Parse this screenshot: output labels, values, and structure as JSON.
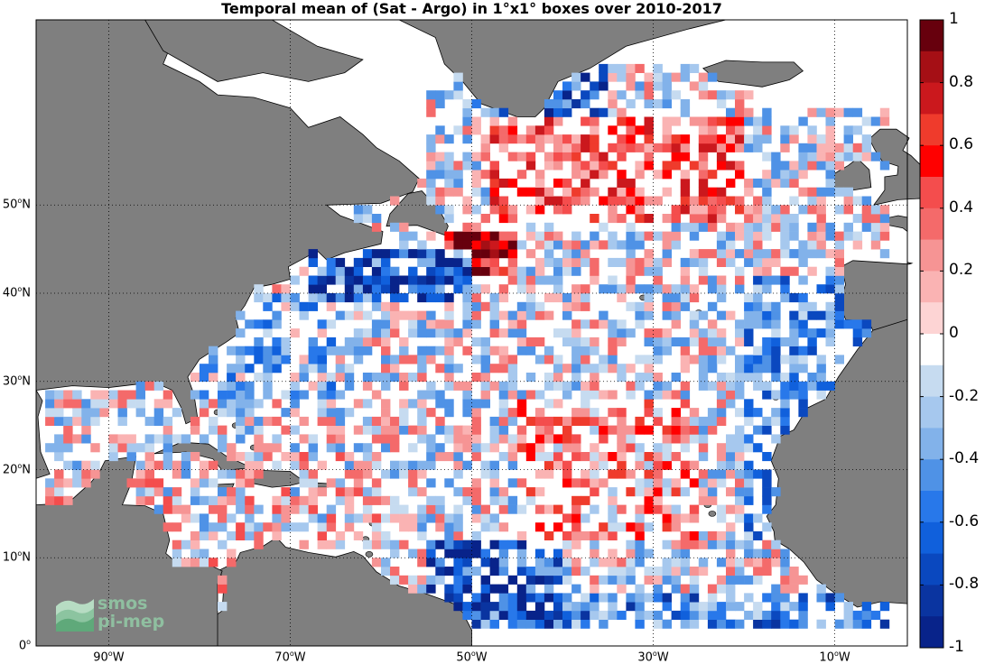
{
  "title": "Temporal mean of (Sat - Argo) in 1°x1° boxes over 2010-2017",
  "map": {
    "lon_range": [
      -98,
      -2
    ],
    "lat_range": [
      0,
      71
    ],
    "land_color": "#7f7f7f",
    "ocean_color": "#ffffff",
    "grid": true,
    "lat_ticks": [
      {
        "value": 0,
        "deg": "0",
        "sup": "o",
        "hemi": ""
      },
      {
        "value": 10,
        "deg": "10",
        "sup": "o",
        "hemi": "N"
      },
      {
        "value": 20,
        "deg": "20",
        "sup": "o",
        "hemi": "N"
      },
      {
        "value": 30,
        "deg": "30",
        "sup": "o",
        "hemi": "N"
      },
      {
        "value": 40,
        "deg": "40",
        "sup": "o",
        "hemi": "N"
      },
      {
        "value": 50,
        "deg": "50",
        "sup": "o",
        "hemi": "N"
      }
    ],
    "lon_ticks": [
      {
        "value": -90,
        "deg": "90",
        "sup": "o",
        "hemi": "W"
      },
      {
        "value": -70,
        "deg": "70",
        "sup": "o",
        "hemi": "W"
      },
      {
        "value": -50,
        "deg": "50",
        "sup": "o",
        "hemi": "W"
      },
      {
        "value": -30,
        "deg": "30",
        "sup": "o",
        "hemi": "W"
      },
      {
        "value": -10,
        "deg": "10",
        "sup": "o",
        "hemi": "W"
      }
    ]
  },
  "colorbar": {
    "range": [
      -1,
      1
    ],
    "ticks": [
      "1",
      "0.8",
      "0.6",
      "0.4",
      "0.2",
      "0",
      "-0.2",
      "-0.4",
      "-0.6",
      "-0.8",
      "-1"
    ],
    "colors": [
      "#67000d",
      "#a50f15",
      "#cb181d",
      "#ef3b2c",
      "#ff0000",
      "#f44d4d",
      "#f46a6a",
      "#f69494",
      "#fab3b3",
      "#fdd4d4",
      "#ffffff",
      "#c6dbf0",
      "#a6c8ee",
      "#82b2ea",
      "#4f92e6",
      "#2878ea",
      "#1060dc",
      "#0a48bf",
      "#0a34a0",
      "#08238a"
    ]
  },
  "logo": {
    "line1": "smos",
    "line2": "pi-mep"
  }
}
